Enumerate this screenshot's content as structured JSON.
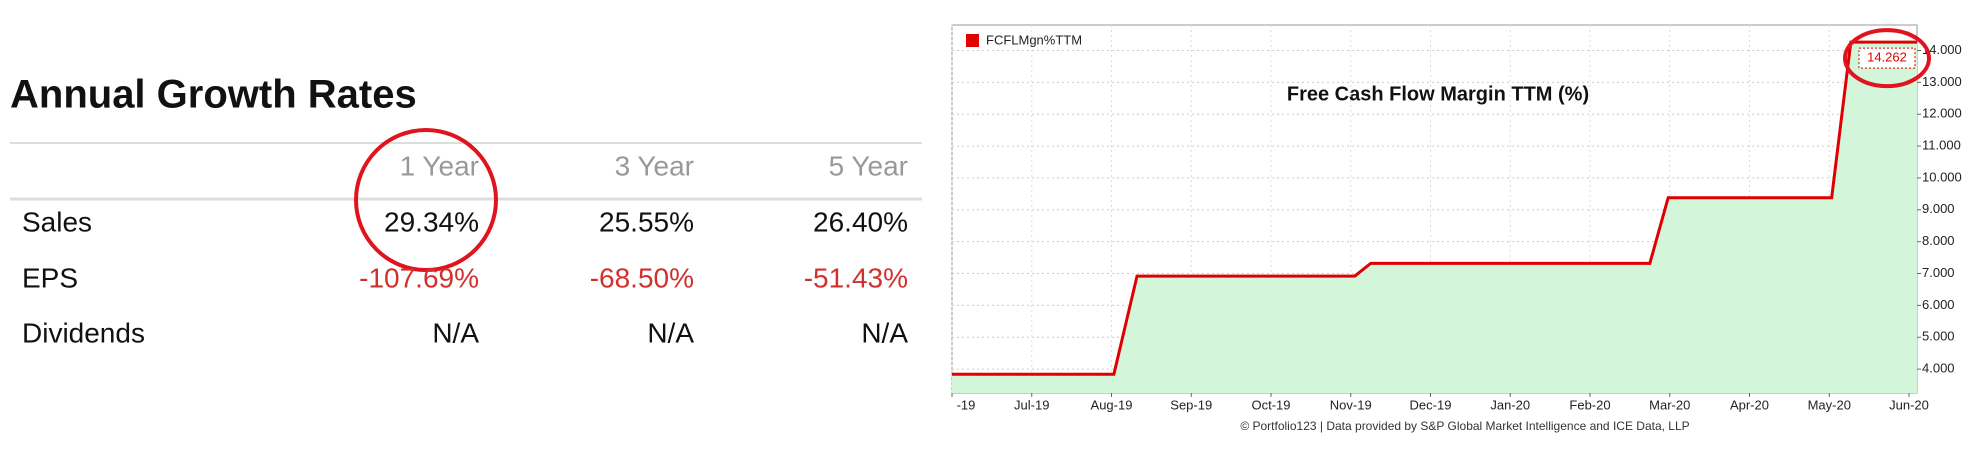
{
  "table": {
    "title": "Annual Growth Rates",
    "headers": [
      "1 Year",
      "3 Year",
      "5 Year"
    ],
    "rows": [
      [
        "Sales",
        "29.34%",
        "25.55%",
        "26.40%"
      ],
      [
        "EPS",
        "-107.69%",
        "-68.50%",
        "-51.43%"
      ],
      [
        "Dividends",
        "N/A",
        "N/A",
        "N/A"
      ]
    ]
  },
  "chart_data": {
    "type": "area",
    "title": "Free Cash Flow Margin TTM (%)",
    "source": "© Portfolio123 | Data provided by S&P Global Market Intelligence and ICE Data, LLP",
    "series": [
      {
        "name": "FCFLMgn%TTM",
        "color": "#e00000",
        "fill": "#d3f5da",
        "x": [
          0,
          2.03,
          2.32,
          5.05,
          5.25,
          8.75,
          8.98,
          11.03,
          11.27,
          12.1
        ],
        "values": [
          3.84,
          3.84,
          6.92,
          6.92,
          7.32,
          7.32,
          9.38,
          9.38,
          14.262,
          14.262
        ]
      }
    ],
    "xlim": [
      0,
      12.1
    ],
    "xticks": [
      {
        "value": 0,
        "label": "-19"
      },
      {
        "value": 1,
        "label": "Jul-19"
      },
      {
        "value": 2,
        "label": "Aug-19"
      },
      {
        "value": 3,
        "label": "Sep-19"
      },
      {
        "value": 4,
        "label": "Oct-19"
      },
      {
        "value": 5,
        "label": "Nov-19"
      },
      {
        "value": 6,
        "label": "Dec-19"
      },
      {
        "value": 7,
        "label": "Jan-20"
      },
      {
        "value": 8,
        "label": "Feb-20"
      },
      {
        "value": 9,
        "label": "Mar-20"
      },
      {
        "value": 10,
        "label": "Apr-20"
      },
      {
        "value": 11,
        "label": "May-20"
      },
      {
        "value": 12,
        "label": "Jun-20"
      }
    ],
    "ylim": [
      3.25,
      14.8
    ],
    "yticks": [
      {
        "value": 4,
        "label": "4.000"
      },
      {
        "value": 5,
        "label": "5.000"
      },
      {
        "value": 6,
        "label": "6.000"
      },
      {
        "value": 7,
        "label": "7.000"
      },
      {
        "value": 8,
        "label": "8.000"
      },
      {
        "value": 9,
        "label": "9.000"
      },
      {
        "value": 10,
        "label": "10.000"
      },
      {
        "value": 11,
        "label": "11.000"
      },
      {
        "value": 12,
        "label": "12.000"
      },
      {
        "value": 13,
        "label": "13.000"
      },
      {
        "value": 14,
        "label": "14.000"
      }
    ],
    "grid": true,
    "legend": "top-left"
  }
}
